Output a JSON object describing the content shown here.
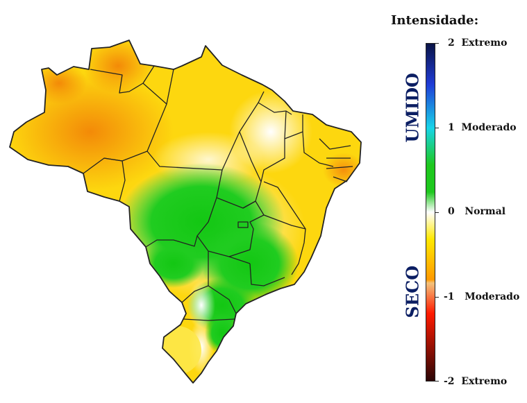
{
  "legend": {
    "title": "Intensidade:",
    "wet_label": "UMIDO",
    "dry_label": "SECO",
    "ticks": [
      {
        "value": "2",
        "text": "Extremo"
      },
      {
        "value": "1",
        "text": "Moderado"
      },
      {
        "value": "0",
        "text": "Normal"
      },
      {
        "value": "-1",
        "text": "Moderado"
      },
      {
        "value": "-2",
        "text": "Extremo"
      }
    ],
    "colors": {
      "extreme_wet": "#0a1446",
      "very_wet": "#1f3bd6",
      "moderate_wet": "#18d4e8",
      "wet": "#1ec81e",
      "normal": "#ffffff",
      "dry": "#ffe800",
      "moderate_dry": "#ff9900",
      "very_dry": "#ff1a00",
      "extreme_dry": "#2a0606",
      "mask_line": "#f3c27a"
    }
  },
  "map": {
    "region": "brazil-states",
    "fill_colors": {
      "amazon_orange": "#f7a011",
      "north_yellow": "#fdd90f",
      "central_green": "#19cd19",
      "normal_white": "#ffffff",
      "south_yellow": "#fde84a",
      "border": "#222222"
    }
  }
}
